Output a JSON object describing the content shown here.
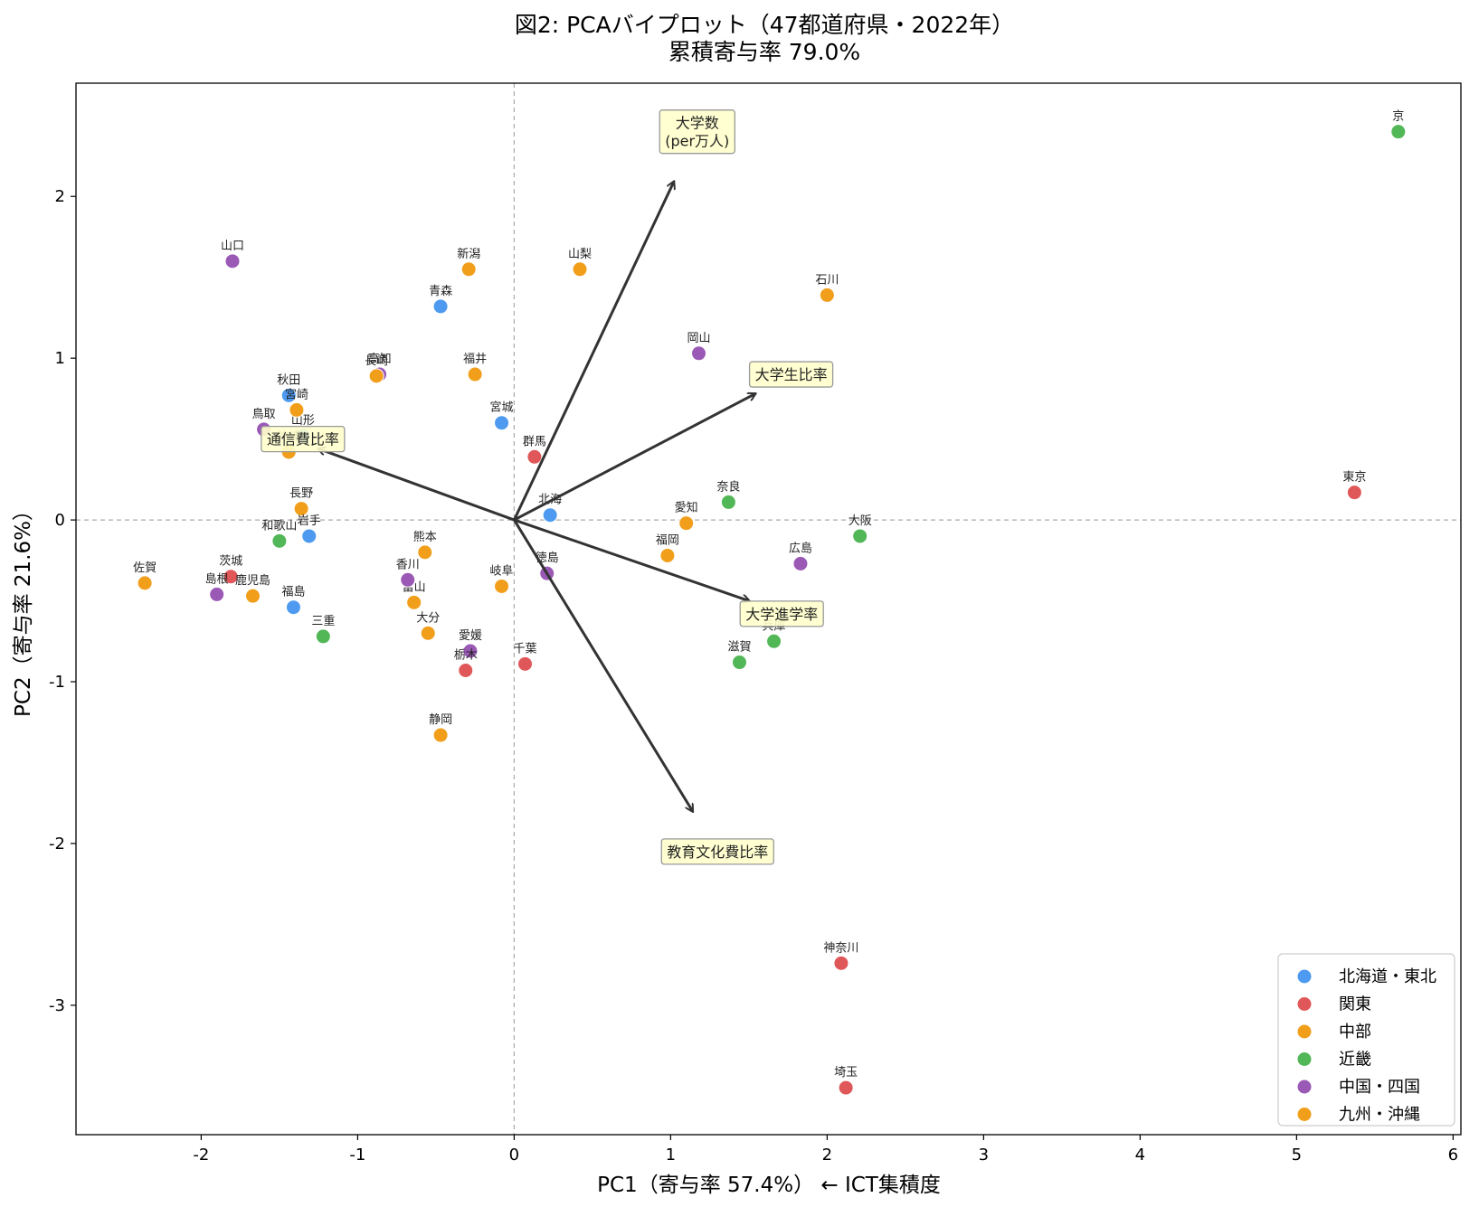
{
  "chart_data": {
    "type": "scatter",
    "title": "図2: PCAバイプロット（47都道府県・2022年）",
    "subtitle": "累積寄与率 79.0%",
    "xlabel": "PC1（寄与率 57.4%） ← ICT集積度",
    "ylabel": "PC2（寄与率 21.6%）",
    "xlim": [
      -2.8,
      6.05
    ],
    "ylim": [
      -3.8,
      2.7
    ],
    "xticks": [
      -2,
      -1,
      0,
      1,
      2,
      3,
      4,
      5,
      6
    ],
    "yticks": [
      -3,
      -2,
      -1,
      0,
      1,
      2
    ],
    "grid": false,
    "legend_position": "lower-right",
    "groups": [
      {
        "name": "北海道・東北",
        "color": "#4e9af0"
      },
      {
        "name": "関東",
        "color": "#e05759"
      },
      {
        "name": "中部",
        "color": "#f19e1b"
      },
      {
        "name": "近畿",
        "color": "#52b757"
      },
      {
        "name": "中国・四国",
        "color": "#9b59b6"
      },
      {
        "name": "九州・沖縄",
        "color": "#f19e1b"
      }
    ],
    "points": [
      {
        "label": "京",
        "x": 5.65,
        "y": 2.4,
        "group": 3
      },
      {
        "label": "東京",
        "x": 5.37,
        "y": 0.17,
        "group": 1
      },
      {
        "label": "神奈川",
        "x": 2.09,
        "y": -2.74,
        "group": 1
      },
      {
        "label": "埼玉",
        "x": 2.12,
        "y": -3.51,
        "group": 1
      },
      {
        "label": "石川",
        "x": 2.0,
        "y": 1.39,
        "group": 2
      },
      {
        "label": "岡山",
        "x": 1.18,
        "y": 1.03,
        "group": 4
      },
      {
        "label": "大阪",
        "x": 2.21,
        "y": -0.1,
        "group": 3
      },
      {
        "label": "広島",
        "x": 1.83,
        "y": -0.27,
        "group": 4
      },
      {
        "label": "兵庫",
        "x": 1.66,
        "y": -0.75,
        "group": 3
      },
      {
        "label": "滋賀",
        "x": 1.44,
        "y": -0.88,
        "group": 3
      },
      {
        "label": "奈良",
        "x": 1.37,
        "y": 0.11,
        "group": 3
      },
      {
        "label": "愛知",
        "x": 1.1,
        "y": -0.02,
        "group": 2
      },
      {
        "label": "福岡",
        "x": 0.98,
        "y": -0.22,
        "group": 5
      },
      {
        "label": "山梨",
        "x": 0.42,
        "y": 1.55,
        "group": 2
      },
      {
        "label": "北海",
        "x": 0.23,
        "y": 0.03,
        "group": 0
      },
      {
        "label": "徳島",
        "x": 0.21,
        "y": -0.33,
        "group": 4
      },
      {
        "label": "群馬",
        "x": 0.13,
        "y": 0.39,
        "group": 1
      },
      {
        "label": "千葉",
        "x": 0.07,
        "y": -0.89,
        "group": 1
      },
      {
        "label": "宮城",
        "x": -0.08,
        "y": 0.6,
        "group": 0
      },
      {
        "label": "岐阜",
        "x": -0.08,
        "y": -0.41,
        "group": 2
      },
      {
        "label": "福井",
        "x": -0.25,
        "y": 0.9,
        "group": 2
      },
      {
        "label": "新潟",
        "x": -0.29,
        "y": 1.55,
        "group": 2
      },
      {
        "label": "愛媛",
        "x": -0.28,
        "y": -0.81,
        "group": 4
      },
      {
        "label": "栃木",
        "x": -0.31,
        "y": -0.93,
        "group": 1
      },
      {
        "label": "青森",
        "x": -0.47,
        "y": 1.32,
        "group": 0
      },
      {
        "label": "静岡",
        "x": -0.47,
        "y": -1.33,
        "group": 2
      },
      {
        "label": "熊本",
        "x": -0.57,
        "y": -0.2,
        "group": 5
      },
      {
        "label": "大分",
        "x": -0.55,
        "y": -0.7,
        "group": 5
      },
      {
        "label": "富山",
        "x": -0.64,
        "y": -0.51,
        "group": 2
      },
      {
        "label": "香川",
        "x": -0.68,
        "y": -0.37,
        "group": 4
      },
      {
        "label": "高知",
        "x": -0.86,
        "y": 0.9,
        "group": 4
      },
      {
        "label": "長崎",
        "x": -0.88,
        "y": 0.89,
        "group": 5
      },
      {
        "label": "長野",
        "x": -1.36,
        "y": 0.07,
        "group": 2
      },
      {
        "label": "岩手",
        "x": -1.31,
        "y": -0.1,
        "group": 0
      },
      {
        "label": "山形",
        "x": -1.35,
        "y": 0.52,
        "group": 0
      },
      {
        "label": "秋田",
        "x": -1.44,
        "y": 0.77,
        "group": 0
      },
      {
        "label": "宮崎",
        "x": -1.39,
        "y": 0.68,
        "group": 5
      },
      {
        "label": "沖縄",
        "x": -1.44,
        "y": 0.42,
        "group": 5
      },
      {
        "label": "鳥取",
        "x": -1.6,
        "y": 0.56,
        "group": 4
      },
      {
        "label": "和歌山",
        "x": -1.5,
        "y": -0.13,
        "group": 3
      },
      {
        "label": "福島",
        "x": -1.41,
        "y": -0.54,
        "group": 0
      },
      {
        "label": "三重",
        "x": -1.22,
        "y": -0.72,
        "group": 3
      },
      {
        "label": "山口",
        "x": -1.8,
        "y": 1.6,
        "group": 4
      },
      {
        "label": "茨城",
        "x": -1.81,
        "y": -0.35,
        "group": 1
      },
      {
        "label": "鹿児島",
        "x": -1.67,
        "y": -0.47,
        "group": 5
      },
      {
        "label": "島根",
        "x": -1.9,
        "y": -0.46,
        "group": 4
      },
      {
        "label": "佐賀",
        "x": -2.36,
        "y": -0.39,
        "group": 5
      }
    ],
    "loadings": [
      {
        "label": "大学数\n(per万人)",
        "x": 1.02,
        "y": 2.09,
        "lx": 1.17,
        "ly": 2.4
      },
      {
        "label": "大学生比率",
        "x": 1.54,
        "y": 0.78,
        "lx": 1.77,
        "ly": 0.9
      },
      {
        "label": "通信費比率",
        "x": -1.25,
        "y": 0.44,
        "lx": -1.35,
        "ly": 0.5
      },
      {
        "label": "大学進学率",
        "x": 1.5,
        "y": -0.5,
        "lx": 1.71,
        "ly": -0.58
      },
      {
        "label": "教育文化費比率",
        "x": 1.14,
        "y": -1.8,
        "lx": 1.3,
        "ly": -2.05
      }
    ]
  }
}
